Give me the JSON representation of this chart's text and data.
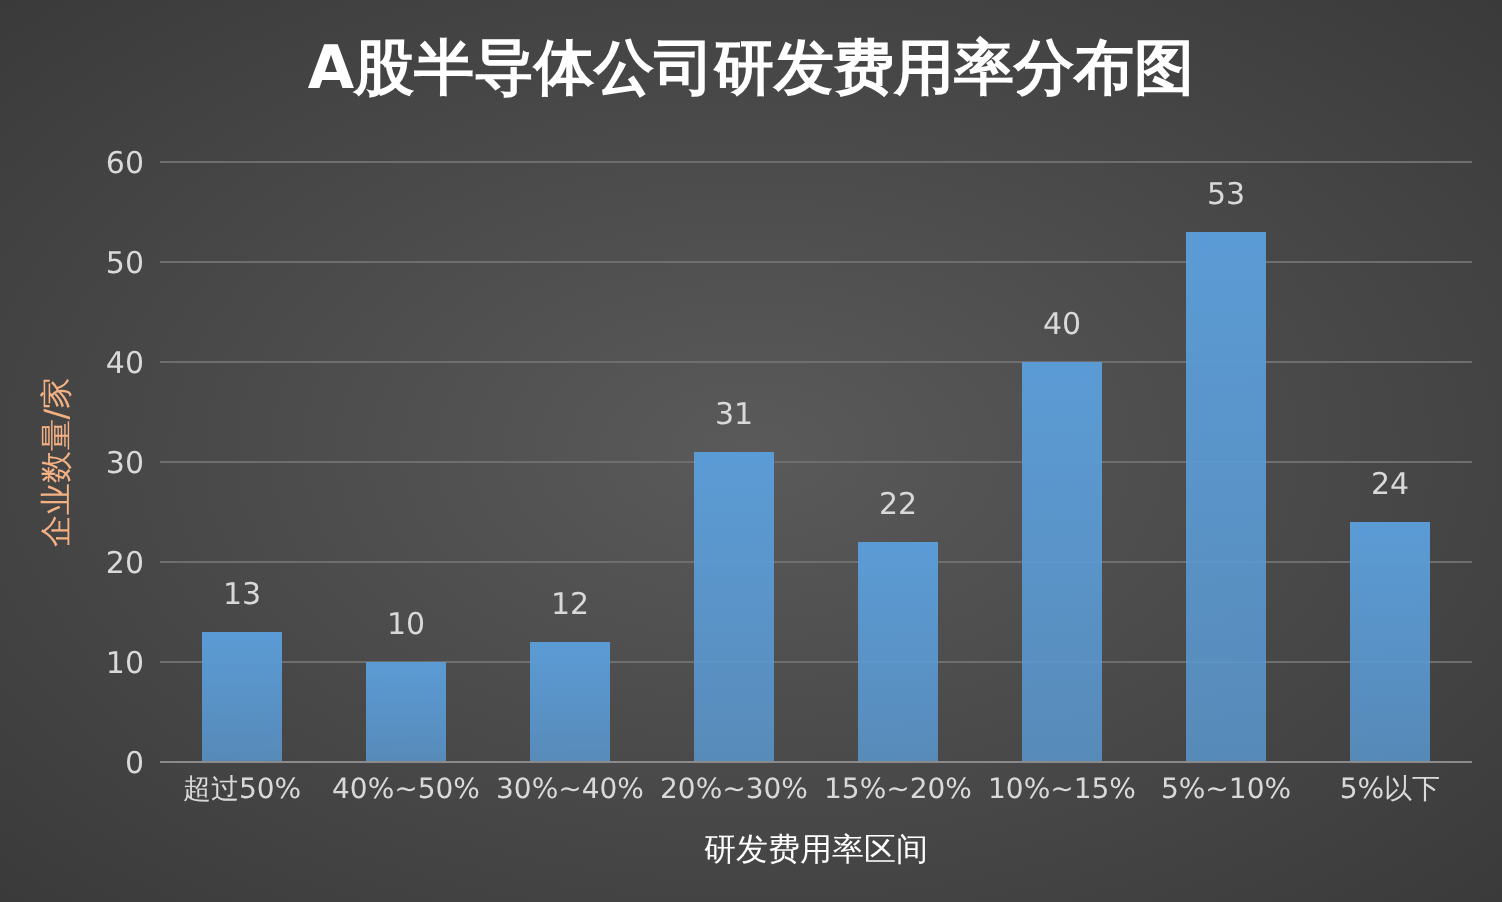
{
  "chart_data": {
    "type": "bar",
    "title": "A股半导体公司研发费用率分布图",
    "xlabel": "研发费用率区间",
    "ylabel": "企业数量/家",
    "categories": [
      "超过50%",
      "40%~50%",
      "30%~40%",
      "20%~30%",
      "15%~20%",
      "10%~15%",
      "5%~10%",
      "5%以下"
    ],
    "values": [
      13,
      10,
      12,
      31,
      22,
      40,
      53,
      24
    ],
    "color": "#5b9bd5",
    "ylim": [
      0,
      60
    ],
    "yticks": [
      0,
      10,
      20,
      30,
      40,
      50,
      60
    ],
    "grid": "y",
    "data_labels": true,
    "legend": false
  }
}
